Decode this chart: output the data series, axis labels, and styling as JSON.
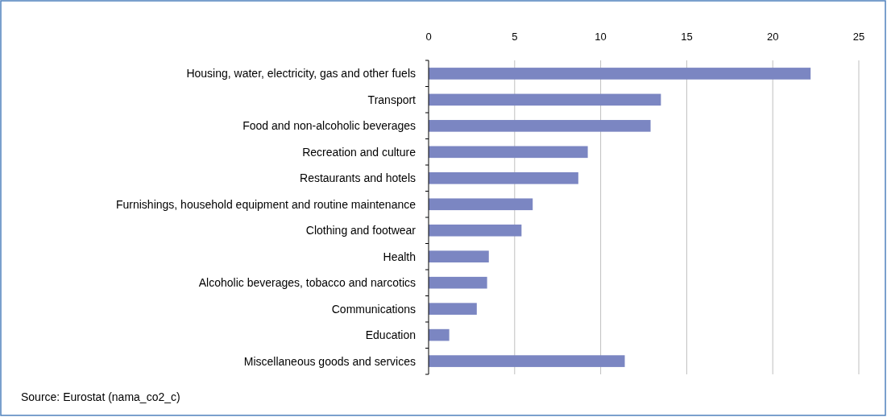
{
  "chart_data": {
    "type": "bar",
    "orientation": "horizontal",
    "categories": [
      "Housing, water, electricity, gas and other fuels",
      "Transport",
      "Food and non-alcoholic beverages",
      "Recreation and culture",
      "Restaurants and hotels",
      "Furnishings, household equipment and routine maintenance",
      "Clothing and footwear",
      "Health",
      "Alcoholic beverages, tobacco and narcotics",
      "Communications",
      "Education",
      "Miscellaneous goods and services"
    ],
    "values": [
      22.2,
      13.5,
      12.9,
      9.25,
      8.7,
      6.05,
      5.4,
      3.5,
      3.4,
      2.8,
      1.2,
      11.4
    ],
    "color": "#7b86c2",
    "xlim": [
      0,
      25
    ],
    "xticks": [
      0,
      5,
      10,
      15,
      20,
      25
    ],
    "grid": "x",
    "annotations": [
      "Source: Eurostat (nama_co2_c)"
    ]
  }
}
